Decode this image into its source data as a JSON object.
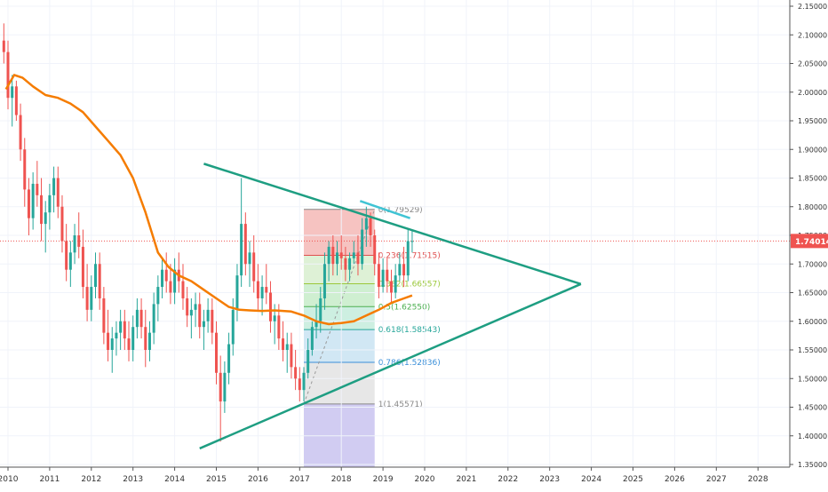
{
  "chart_data": {
    "type": "candlestick",
    "timeframe": "monthly",
    "last_price": "1.74014",
    "colors": {
      "up": "#26a69a",
      "down": "#ef5350",
      "moving_average": "#f57c00",
      "triangle": "#1e9e82",
      "short_trendline": "#40c4d4",
      "price_line": "#ef5350",
      "price_tag": "#ef5350"
    },
    "x_axis": {
      "labels": [
        "2010",
        "2011",
        "2012",
        "2013",
        "2014",
        "2015",
        "2016",
        "2017",
        "2018",
        "2019",
        "2020",
        "2021",
        "2022",
        "2023",
        "2024",
        "2025",
        "2026",
        "2027",
        "2028"
      ]
    },
    "y_axis": {
      "range": [
        1.35,
        2.15
      ],
      "labels": [
        "2.15000",
        "2.10000",
        "2.05000",
        "2.00000",
        "1.95000",
        "1.90000",
        "1.85000",
        "1.80000",
        "1.75000",
        "1.70000",
        "1.65000",
        "1.60000",
        "1.55000",
        "1.50000",
        "1.45000",
        "1.40000",
        "1.35000"
      ]
    },
    "grid": true,
    "fibonacci": {
      "start": {
        "t": 2017.1,
        "price": 1.45571
      },
      "end": {
        "t": 2018.8,
        "price": 1.79529
      },
      "levels": [
        {
          "ratio": "0",
          "label": "0(1.79529)",
          "price": 1.79529,
          "color": "#888888",
          "fill": "#f4b9b6"
        },
        {
          "ratio": "0.236",
          "label": "0.236(1.71515)",
          "price": 1.71515,
          "color": "#e05050",
          "fill": "#d8efcf"
        },
        {
          "ratio": "0.382",
          "label": "0.382(1.66557)",
          "price": 1.66557,
          "color": "#9bc83a",
          "fill": "#c7ecc9"
        },
        {
          "ratio": "0.5",
          "label": "0.5(1.62550)",
          "price": 1.6255,
          "color": "#4caf50",
          "fill": "#c4ecdc"
        },
        {
          "ratio": "0.618",
          "label": "0.618(1.58543)",
          "price": 1.58543,
          "color": "#26a69a",
          "fill": "#c9e3f2"
        },
        {
          "ratio": "0.786",
          "label": "0.786(1.52836)",
          "price": 1.52836,
          "color": "#3a8fd9",
          "fill": "#e3e3e3"
        },
        {
          "ratio": "1",
          "label": "1(1.45571)",
          "price": 1.45571,
          "color": "#888888",
          "fill": "#c9c3f0"
        }
      ]
    },
    "triangle": {
      "upper_start": {
        "t": 2014.7,
        "price": 1.875
      },
      "lower_start": {
        "t": 2014.6,
        "price": 1.378
      },
      "apex": {
        "t": 2023.75,
        "price": 1.665
      }
    },
    "short_trendline": {
      "start": {
        "t": 2018.45,
        "price": 1.81
      },
      "end": {
        "t": 2019.65,
        "price": 1.78
      }
    },
    "moving_average": [
      [
        2009.95,
        2.005
      ],
      [
        2010.15,
        2.03
      ],
      [
        2010.35,
        2.025
      ],
      [
        2010.6,
        2.01
      ],
      [
        2010.9,
        1.995
      ],
      [
        2011.2,
        1.99
      ],
      [
        2011.5,
        1.98
      ],
      [
        2011.8,
        1.965
      ],
      [
        2012.1,
        1.94
      ],
      [
        2012.4,
        1.915
      ],
      [
        2012.7,
        1.89
      ],
      [
        2013.0,
        1.85
      ],
      [
        2013.3,
        1.79
      ],
      [
        2013.6,
        1.72
      ],
      [
        2013.85,
        1.695
      ],
      [
        2014.1,
        1.68
      ],
      [
        2014.4,
        1.67
      ],
      [
        2014.7,
        1.655
      ],
      [
        2015.0,
        1.64
      ],
      [
        2015.3,
        1.625
      ],
      [
        2015.55,
        1.62
      ],
      [
        2015.8,
        1.619
      ],
      [
        2016.1,
        1.618
      ],
      [
        2016.4,
        1.619
      ],
      [
        2016.8,
        1.617
      ],
      [
        2017.1,
        1.61
      ],
      [
        2017.4,
        1.6
      ],
      [
        2017.7,
        1.595
      ],
      [
        2018.0,
        1.597
      ],
      [
        2018.3,
        1.6
      ],
      [
        2018.6,
        1.61
      ],
      [
        2018.9,
        1.62
      ],
      [
        2019.2,
        1.632
      ],
      [
        2019.5,
        1.64
      ],
      [
        2019.7,
        1.645
      ]
    ],
    "candles": [
      [
        2009.9,
        2.09,
        2.12,
        2.05,
        2.07
      ],
      [
        2010.0,
        2.07,
        2.09,
        1.97,
        1.99
      ],
      [
        2010.1,
        1.99,
        2.03,
        1.94,
        2.01
      ],
      [
        2010.2,
        2.01,
        2.02,
        1.95,
        1.96
      ],
      [
        2010.3,
        1.96,
        1.98,
        1.88,
        1.9
      ],
      [
        2010.4,
        1.9,
        1.92,
        1.8,
        1.83
      ],
      [
        2010.5,
        1.83,
        1.85,
        1.75,
        1.78
      ],
      [
        2010.6,
        1.78,
        1.86,
        1.76,
        1.84
      ],
      [
        2010.7,
        1.84,
        1.88,
        1.8,
        1.82
      ],
      [
        2010.8,
        1.82,
        1.85,
        1.74,
        1.77
      ],
      [
        2010.9,
        1.77,
        1.81,
        1.72,
        1.79
      ],
      [
        2011.0,
        1.79,
        1.84,
        1.76,
        1.82
      ],
      [
        2011.1,
        1.82,
        1.87,
        1.79,
        1.85
      ],
      [
        2011.2,
        1.85,
        1.87,
        1.78,
        1.8
      ],
      [
        2011.3,
        1.8,
        1.82,
        1.72,
        1.74
      ],
      [
        2011.4,
        1.74,
        1.77,
        1.67,
        1.69
      ],
      [
        2011.5,
        1.69,
        1.74,
        1.66,
        1.72
      ],
      [
        2011.6,
        1.72,
        1.77,
        1.7,
        1.75
      ],
      [
        2011.7,
        1.75,
        1.79,
        1.71,
        1.73
      ],
      [
        2011.8,
        1.73,
        1.76,
        1.64,
        1.66
      ],
      [
        2011.9,
        1.66,
        1.7,
        1.6,
        1.62
      ],
      [
        2012.0,
        1.62,
        1.68,
        1.6,
        1.66
      ],
      [
        2012.1,
        1.66,
        1.72,
        1.64,
        1.7
      ],
      [
        2012.2,
        1.7,
        1.72,
        1.62,
        1.64
      ],
      [
        2012.3,
        1.64,
        1.66,
        1.56,
        1.58
      ],
      [
        2012.4,
        1.58,
        1.62,
        1.53,
        1.55
      ],
      [
        2012.5,
        1.55,
        1.59,
        1.51,
        1.57
      ],
      [
        2012.6,
        1.57,
        1.6,
        1.54,
        1.58
      ],
      [
        2012.7,
        1.58,
        1.62,
        1.55,
        1.6
      ],
      [
        2012.8,
        1.6,
        1.62,
        1.55,
        1.57
      ],
      [
        2012.9,
        1.57,
        1.6,
        1.53,
        1.55
      ],
      [
        2013.0,
        1.55,
        1.61,
        1.53,
        1.59
      ],
      [
        2013.1,
        1.59,
        1.64,
        1.57,
        1.62
      ],
      [
        2013.2,
        1.62,
        1.64,
        1.57,
        1.59
      ],
      [
        2013.3,
        1.59,
        1.62,
        1.52,
        1.55
      ],
      [
        2013.4,
        1.55,
        1.6,
        1.53,
        1.58
      ],
      [
        2013.5,
        1.58,
        1.65,
        1.56,
        1.63
      ],
      [
        2013.6,
        1.63,
        1.68,
        1.6,
        1.66
      ],
      [
        2013.7,
        1.66,
        1.71,
        1.64,
        1.69
      ],
      [
        2013.8,
        1.69,
        1.72,
        1.65,
        1.67
      ],
      [
        2013.9,
        1.67,
        1.7,
        1.63,
        1.65
      ],
      [
        2014.0,
        1.65,
        1.71,
        1.63,
        1.69
      ],
      [
        2014.1,
        1.69,
        1.72,
        1.65,
        1.67
      ],
      [
        2014.2,
        1.67,
        1.7,
        1.62,
        1.64
      ],
      [
        2014.3,
        1.64,
        1.66,
        1.59,
        1.61
      ],
      [
        2014.4,
        1.61,
        1.64,
        1.57,
        1.62
      ],
      [
        2014.5,
        1.62,
        1.65,
        1.59,
        1.63
      ],
      [
        2014.6,
        1.63,
        1.65,
        1.57,
        1.59
      ],
      [
        2014.7,
        1.59,
        1.62,
        1.55,
        1.6
      ],
      [
        2014.8,
        1.6,
        1.64,
        1.58,
        1.62
      ],
      [
        2014.9,
        1.62,
        1.64,
        1.56,
        1.58
      ],
      [
        2015.0,
        1.58,
        1.6,
        1.49,
        1.51
      ],
      [
        2015.1,
        1.51,
        1.54,
        1.39,
        1.46
      ],
      [
        2015.2,
        1.46,
        1.53,
        1.44,
        1.51
      ],
      [
        2015.3,
        1.51,
        1.58,
        1.49,
        1.56
      ],
      [
        2015.4,
        1.56,
        1.64,
        1.54,
        1.62
      ],
      [
        2015.5,
        1.62,
        1.7,
        1.6,
        1.68
      ],
      [
        2015.6,
        1.68,
        1.85,
        1.66,
        1.77
      ],
      [
        2015.7,
        1.77,
        1.79,
        1.68,
        1.7
      ],
      [
        2015.8,
        1.7,
        1.74,
        1.66,
        1.72
      ],
      [
        2015.9,
        1.72,
        1.75,
        1.65,
        1.67
      ],
      [
        2016.0,
        1.67,
        1.7,
        1.62,
        1.64
      ],
      [
        2016.1,
        1.64,
        1.68,
        1.61,
        1.66
      ],
      [
        2016.2,
        1.66,
        1.7,
        1.63,
        1.65
      ],
      [
        2016.3,
        1.65,
        1.67,
        1.58,
        1.6
      ],
      [
        2016.4,
        1.6,
        1.63,
        1.56,
        1.61
      ],
      [
        2016.5,
        1.61,
        1.63,
        1.55,
        1.57
      ],
      [
        2016.6,
        1.57,
        1.6,
        1.53,
        1.55
      ],
      [
        2016.7,
        1.55,
        1.58,
        1.51,
        1.56
      ],
      [
        2016.8,
        1.56,
        1.58,
        1.5,
        1.52
      ],
      [
        2016.9,
        1.52,
        1.55,
        1.48,
        1.5
      ],
      [
        2017.0,
        1.5,
        1.52,
        1.46,
        1.48
      ],
      [
        2017.1,
        1.48,
        1.52,
        1.46,
        1.51
      ],
      [
        2017.2,
        1.51,
        1.57,
        1.5,
        1.55
      ],
      [
        2017.3,
        1.55,
        1.6,
        1.54,
        1.59
      ],
      [
        2017.4,
        1.59,
        1.63,
        1.57,
        1.6
      ],
      [
        2017.5,
        1.6,
        1.66,
        1.58,
        1.64
      ],
      [
        2017.6,
        1.64,
        1.72,
        1.62,
        1.7
      ],
      [
        2017.7,
        1.7,
        1.74,
        1.67,
        1.73
      ],
      [
        2017.8,
        1.73,
        1.75,
        1.68,
        1.7
      ],
      [
        2017.9,
        1.7,
        1.74,
        1.68,
        1.72
      ],
      [
        2018.0,
        1.72,
        1.75,
        1.69,
        1.71
      ],
      [
        2018.1,
        1.71,
        1.73,
        1.67,
        1.69
      ],
      [
        2018.2,
        1.69,
        1.72,
        1.67,
        1.71
      ],
      [
        2018.3,
        1.71,
        1.74,
        1.7,
        1.72
      ],
      [
        2018.4,
        1.72,
        1.75,
        1.68,
        1.7
      ],
      [
        2018.5,
        1.7,
        1.78,
        1.69,
        1.76
      ],
      [
        2018.6,
        1.76,
        1.8,
        1.73,
        1.78
      ],
      [
        2018.7,
        1.78,
        1.79,
        1.73,
        1.75
      ],
      [
        2018.8,
        1.75,
        1.76,
        1.68,
        1.7
      ],
      [
        2018.9,
        1.7,
        1.72,
        1.64,
        1.66
      ],
      [
        2019.0,
        1.66,
        1.71,
        1.65,
        1.69
      ],
      [
        2019.1,
        1.69,
        1.71,
        1.65,
        1.67
      ],
      [
        2019.2,
        1.67,
        1.69,
        1.63,
        1.65
      ],
      [
        2019.3,
        1.65,
        1.7,
        1.64,
        1.68
      ],
      [
        2019.4,
        1.68,
        1.72,
        1.67,
        1.7
      ],
      [
        2019.5,
        1.7,
        1.73,
        1.66,
        1.68
      ],
      [
        2019.6,
        1.68,
        1.76,
        1.67,
        1.74
      ],
      [
        2019.7,
        1.74,
        1.76,
        1.72,
        1.74
      ]
    ]
  }
}
